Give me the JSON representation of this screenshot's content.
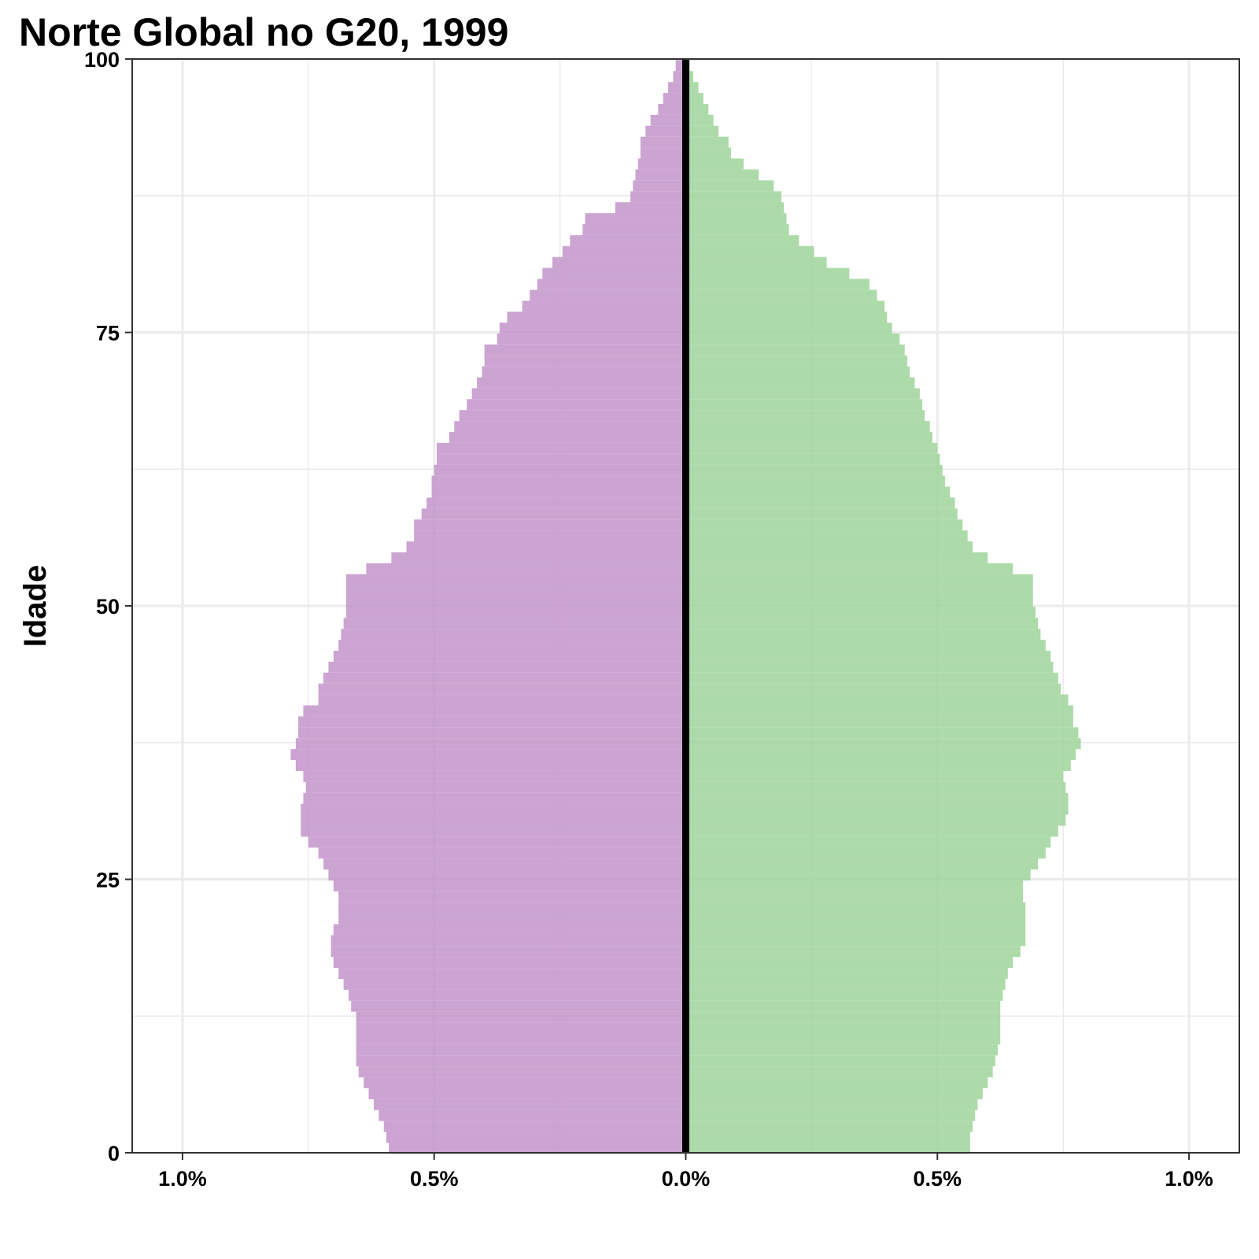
{
  "chart_data": {
    "type": "bar",
    "orientation": "horizontal",
    "subtype": "population-pyramid",
    "title": "Norte Global no G20, 1999",
    "xlabel": "",
    "ylabel": "Idade",
    "xlim": [
      -1.1,
      1.1
    ],
    "ylim": [
      0,
      100
    ],
    "x_tick_values": [
      -1.0,
      -0.5,
      0.0,
      0.5,
      1.0
    ],
    "x_tick_labels": [
      "1.0%",
      "0.5%",
      "0.0%",
      "0.5%",
      "1.0%"
    ],
    "y_tick_values": [
      0,
      25,
      50,
      75,
      100
    ],
    "y_tick_labels": [
      "0",
      "25",
      "50",
      "75",
      "100"
    ],
    "grid": true,
    "series": [
      {
        "color": "#c294c9",
        "ages": [
          0,
          1,
          2,
          3,
          4,
          5,
          6,
          7,
          8,
          9,
          10,
          11,
          12,
          13,
          14,
          15,
          16,
          17,
          18,
          19,
          20,
          21,
          22,
          23,
          24,
          25,
          26,
          27,
          28,
          29,
          30,
          31,
          32,
          33,
          34,
          35,
          36,
          37,
          38,
          39,
          40,
          41,
          42,
          43,
          44,
          45,
          46,
          47,
          48,
          49,
          50,
          51,
          52,
          53,
          54,
          55,
          56,
          57,
          58,
          59,
          60,
          61,
          62,
          63,
          64,
          65,
          66,
          67,
          68,
          69,
          70,
          71,
          72,
          73,
          74,
          75,
          76,
          77,
          78,
          79,
          80,
          81,
          82,
          83,
          84,
          85,
          86,
          87,
          88,
          89,
          90,
          91,
          92,
          93,
          94,
          95,
          96,
          97,
          98,
          99
        ],
        "values": [
          0.59,
          0.595,
          0.6,
          0.61,
          0.62,
          0.63,
          0.64,
          0.65,
          0.655,
          0.655,
          0.655,
          0.655,
          0.655,
          0.665,
          0.67,
          0.68,
          0.69,
          0.7,
          0.705,
          0.705,
          0.7,
          0.69,
          0.69,
          0.69,
          0.7,
          0.71,
          0.72,
          0.73,
          0.75,
          0.765,
          0.765,
          0.765,
          0.76,
          0.755,
          0.76,
          0.775,
          0.785,
          0.775,
          0.77,
          0.77,
          0.76,
          0.73,
          0.73,
          0.72,
          0.71,
          0.7,
          0.69,
          0.685,
          0.68,
          0.675,
          0.675,
          0.675,
          0.675,
          0.635,
          0.585,
          0.555,
          0.54,
          0.54,
          0.525,
          0.515,
          0.505,
          0.505,
          0.5,
          0.495,
          0.495,
          0.47,
          0.46,
          0.45,
          0.435,
          0.425,
          0.415,
          0.405,
          0.4,
          0.4,
          0.375,
          0.37,
          0.355,
          0.325,
          0.31,
          0.295,
          0.285,
          0.265,
          0.245,
          0.23,
          0.205,
          0.2,
          0.14,
          0.11,
          0.105,
          0.1,
          0.095,
          0.09,
          0.09,
          0.08,
          0.07,
          0.055,
          0.045,
          0.035,
          0.025,
          0.02,
          0.012,
          0.008,
          0.004,
          0.002
        ]
      },
      {
        "color": "#9fd49a",
        "ages": [
          0,
          1,
          2,
          3,
          4,
          5,
          6,
          7,
          8,
          9,
          10,
          11,
          12,
          13,
          14,
          15,
          16,
          17,
          18,
          19,
          20,
          21,
          22,
          23,
          24,
          25,
          26,
          27,
          28,
          29,
          30,
          31,
          32,
          33,
          34,
          35,
          36,
          37,
          38,
          39,
          40,
          41,
          42,
          43,
          44,
          45,
          46,
          47,
          48,
          49,
          50,
          51,
          52,
          53,
          54,
          55,
          56,
          57,
          58,
          59,
          60,
          61,
          62,
          63,
          64,
          65,
          66,
          67,
          68,
          69,
          70,
          71,
          72,
          73,
          74,
          75,
          76,
          77,
          78,
          79,
          80,
          81,
          82,
          83,
          84,
          85,
          86,
          87,
          88,
          89,
          90,
          91,
          92,
          93,
          94,
          95,
          96,
          97,
          98,
          99
        ],
        "values": [
          0.565,
          0.565,
          0.57,
          0.575,
          0.58,
          0.59,
          0.6,
          0.61,
          0.615,
          0.62,
          0.625,
          0.625,
          0.625,
          0.625,
          0.63,
          0.635,
          0.64,
          0.65,
          0.665,
          0.675,
          0.675,
          0.675,
          0.675,
          0.67,
          0.67,
          0.685,
          0.7,
          0.715,
          0.725,
          0.74,
          0.755,
          0.76,
          0.76,
          0.755,
          0.75,
          0.765,
          0.775,
          0.785,
          0.78,
          0.77,
          0.77,
          0.76,
          0.745,
          0.74,
          0.73,
          0.725,
          0.715,
          0.705,
          0.7,
          0.695,
          0.69,
          0.69,
          0.69,
          0.65,
          0.6,
          0.57,
          0.56,
          0.55,
          0.54,
          0.535,
          0.525,
          0.515,
          0.51,
          0.505,
          0.5,
          0.49,
          0.485,
          0.475,
          0.47,
          0.465,
          0.455,
          0.445,
          0.44,
          0.435,
          0.425,
          0.41,
          0.4,
          0.395,
          0.38,
          0.365,
          0.325,
          0.28,
          0.255,
          0.225,
          0.205,
          0.2,
          0.195,
          0.19,
          0.175,
          0.145,
          0.115,
          0.09,
          0.085,
          0.065,
          0.055,
          0.045,
          0.035,
          0.025,
          0.015,
          0.008
        ]
      }
    ]
  }
}
